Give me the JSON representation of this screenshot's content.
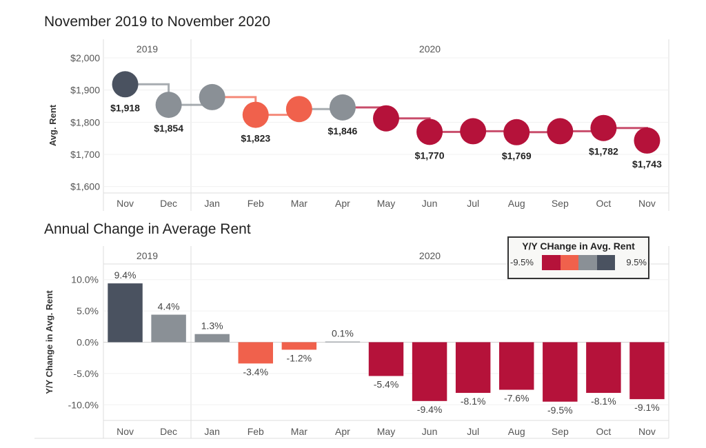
{
  "chart_data": [
    {
      "type": "line",
      "title": "November 2019 to November 2020",
      "ylabel": "Avg. Rent",
      "ylim": [
        1580,
        2000
      ],
      "yticks": [
        "$1,600",
        "$1,700",
        "$1,800",
        "$1,900",
        "$2,000"
      ],
      "ytick_values": [
        1600,
        1700,
        1800,
        1900,
        2000
      ],
      "years": [
        "2019",
        "2020"
      ],
      "categories": [
        "Nov",
        "Dec",
        "Jan",
        "Feb",
        "Mar",
        "Apr",
        "May",
        "Jun",
        "Jul",
        "Aug",
        "Sep",
        "Oct",
        "Nov"
      ],
      "values": [
        1918,
        1854,
        1878,
        1823,
        1841,
        1846,
        1812,
        1770,
        1772,
        1769,
        1772,
        1782,
        1743
      ],
      "labels": [
        "$1,918",
        "$1,854",
        "",
        "$1,823",
        "",
        "$1,846",
        "",
        "$1,770",
        "",
        "$1,769",
        "",
        "$1,782",
        "$1,743"
      ],
      "colors": [
        "#4a5260",
        "#8a9096",
        "#8a9096",
        "#f0614c",
        "#f0614c",
        "#8a9096",
        "#b5123a",
        "#b5123a",
        "#b5123a",
        "#b5123a",
        "#b5123a",
        "#b5123a",
        "#b5123a"
      ]
    },
    {
      "type": "bar",
      "title": "Annual Change in Average Rent",
      "ylabel": "Y/Y Change in Avg. Rent",
      "ylim": [
        -12.5,
        12.5
      ],
      "yticks": [
        "-10.0%",
        "-5.0%",
        "0.0%",
        "5.0%",
        "10.0%"
      ],
      "ytick_values": [
        -10,
        -5,
        0,
        5,
        10
      ],
      "years": [
        "2019",
        "2020"
      ],
      "categories": [
        "Nov",
        "Dec",
        "Jan",
        "Feb",
        "Mar",
        "Apr",
        "May",
        "Jun",
        "Jul",
        "Aug",
        "Sep",
        "Oct",
        "Nov"
      ],
      "values": [
        9.4,
        4.4,
        1.3,
        -3.4,
        -1.2,
        0.1,
        -5.4,
        -9.4,
        -8.1,
        -7.6,
        -9.5,
        -8.1,
        -9.1
      ],
      "labels": [
        "9.4%",
        "4.4%",
        "1.3%",
        "-3.4%",
        "-1.2%",
        "0.1%",
        "-5.4%",
        "-9.4%",
        "-8.1%",
        "-7.6%",
        "-9.5%",
        "-8.1%",
        "-9.1%"
      ],
      "colors": [
        "#4a5260",
        "#8a9096",
        "#8a9096",
        "#f0614c",
        "#f0614c",
        "#8a9096",
        "#b5123a",
        "#b5123a",
        "#b5123a",
        "#b5123a",
        "#b5123a",
        "#b5123a",
        "#b5123a"
      ],
      "legend": {
        "title": "Y/Y CHange in Avg. Rent",
        "min_label": "-9.5%",
        "max_label": "9.5%",
        "colors": [
          "#b5123a",
          "#f0614c",
          "#8a9096",
          "#4a5260"
        ]
      }
    }
  ]
}
